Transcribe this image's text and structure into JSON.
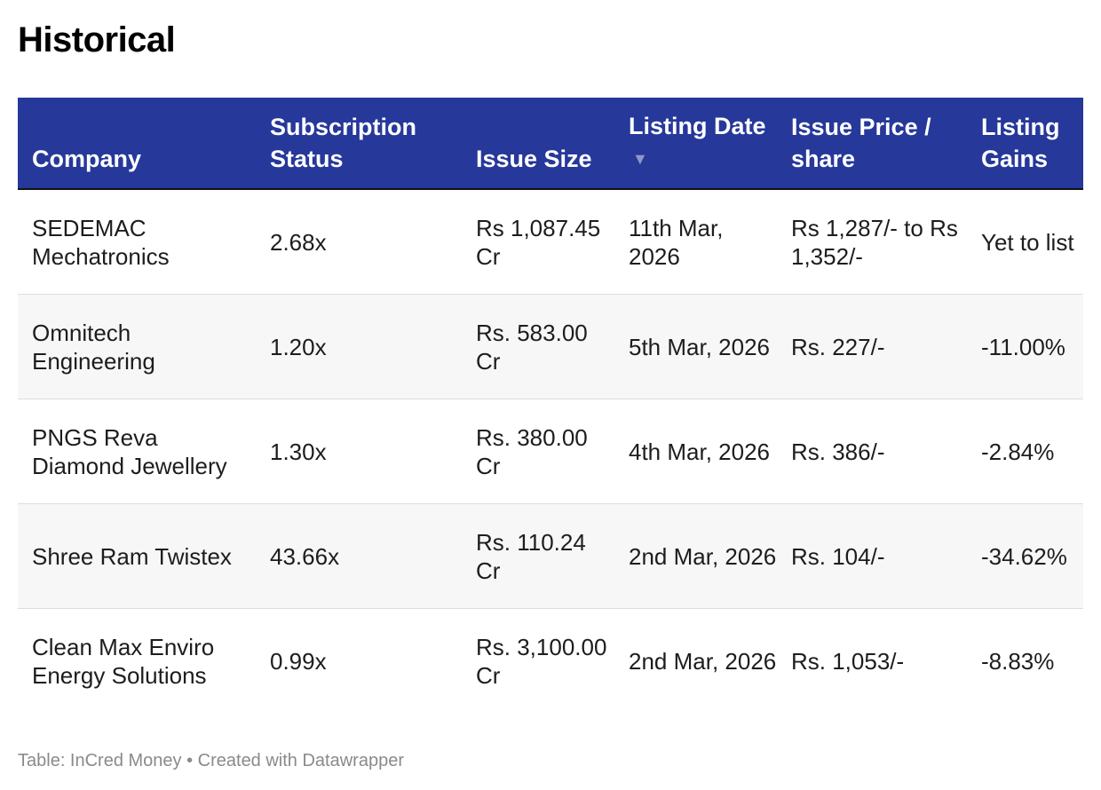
{
  "title": "Historical",
  "table": {
    "headers": {
      "company": "Company",
      "subscription": "Subscription Status",
      "issue_size": "Issue Size",
      "listing_date": "Listing Date",
      "issue_price": "Issue Price / share",
      "listing_gains": "Listing Gains"
    },
    "sort_icon": "▼",
    "rows": [
      {
        "company": "SEDEMAC Mechatronics",
        "subscription": "2.68x",
        "issue_size": "Rs 1,087.45 Cr",
        "listing_date": "11th Mar, 2026",
        "issue_price": "Rs 1,287/- to Rs 1,352/-",
        "listing_gains": "Yet to list"
      },
      {
        "company": "Omnitech Engineering",
        "subscription": "1.20x",
        "issue_size": "Rs. 583.00 Cr",
        "listing_date": "5th Mar, 2026",
        "issue_price": "Rs. 227/-",
        "listing_gains": "-11.00%"
      },
      {
        "company": "PNGS Reva Diamond Jewellery",
        "subscription": "1.30x",
        "issue_size": "Rs. 380.00 Cr",
        "listing_date": "4th Mar, 2026",
        "issue_price": "Rs. 386/-",
        "listing_gains": "-2.84%"
      },
      {
        "company": "Shree Ram Twistex",
        "subscription": "43.66x",
        "issue_size": "Rs. 110.24 Cr",
        "listing_date": "2nd Mar, 2026",
        "issue_price": "Rs. 104/-",
        "listing_gains": "-34.62%"
      },
      {
        "company": "Clean Max Enviro Energy Solutions",
        "subscription": "0.99x",
        "issue_size": "Rs. 3,100.00 Cr",
        "listing_date": "2nd Mar, 2026",
        "issue_price": "Rs. 1,053/-",
        "listing_gains": "-8.83%"
      }
    ]
  },
  "footer": "Table: InCred Money • Created with Datawrapper",
  "colors": {
    "header_bg": "#26389a",
    "header_text": "#ffffff",
    "alt_row_bg": "#f7f7f7",
    "footer_text": "#8a8a8a"
  }
}
